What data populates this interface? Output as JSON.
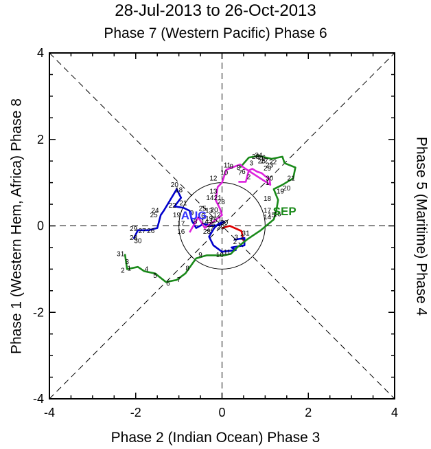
{
  "chart_data": {
    "type": "line",
    "title": "28-Jul-2013 to 26-Oct-2013",
    "subtitle": "Phase 7 (Western Pacific) Phase 6",
    "xlabel": "Phase 2 (Indian Ocean) Phase 3",
    "ylabel_left": "Phase 1 (Western Hem, Africa) Phase 8",
    "ylabel_right": "Phase 5 (Maritime) Phase 4",
    "xlim": [
      -4,
      4
    ],
    "ylim": [
      -4,
      4
    ],
    "xticks": [
      "-4",
      "-2",
      "0",
      "2",
      "4"
    ],
    "yticks": [
      "-4",
      "-2",
      "0",
      "2",
      "4"
    ],
    "unit_circle_radius": 1,
    "grid": false,
    "month_labels": [
      {
        "text": "AUG",
        "x": -0.65,
        "y": 0.15,
        "color": "#3333ff"
      },
      {
        "text": "SEP",
        "x": 1.45,
        "y": 0.25,
        "color": "#1a8a1a"
      }
    ],
    "series": [
      {
        "color": "#dd0000",
        "points": [
          {
            "x": 0.0,
            "y": -0.05,
            "label": "29"
          },
          {
            "x": 0.18,
            "y": 0.0
          },
          {
            "x": 0.45,
            "y": -0.12
          },
          {
            "x": 0.5,
            "y": -0.35
          }
        ]
      },
      {
        "color": "#0000cc",
        "points": [
          {
            "x": 0.28,
            "y": -0.32,
            "label": "31"
          },
          {
            "x": 0.52,
            "y": -0.28
          },
          {
            "x": 0.52,
            "y": -0.45
          },
          {
            "x": 0.22,
            "y": -0.5
          },
          {
            "x": 0.32,
            "y": -0.56
          },
          {
            "x": 0.0,
            "y": -0.6
          },
          {
            "x": -0.2,
            "y": -0.45
          },
          {
            "x": -0.3,
            "y": -0.25
          },
          {
            "x": -0.18,
            "y": -0.05
          },
          {
            "x": -0.08,
            "y": 0.05
          },
          {
            "x": 0.05,
            "y": 0.1
          },
          {
            "x": -0.05,
            "y": 0.02
          },
          {
            "x": -0.25,
            "y": 0.0
          },
          {
            "x": -0.42,
            "y": 0.05
          },
          {
            "x": -0.6,
            "y": -0.05
          },
          {
            "x": -0.7,
            "y": 0.12
          },
          {
            "x": -0.75,
            "y": 0.35
          },
          {
            "x": -0.9,
            "y": 0.42
          },
          {
            "x": -1.1,
            "y": 0.45
          },
          {
            "x": -0.95,
            "y": 0.65
          },
          {
            "x": -1.05,
            "y": 0.85
          },
          {
            "x": -1.35,
            "y": 0.35
          },
          {
            "x": -1.42,
            "y": 0.25
          },
          {
            "x": -1.5,
            "y": -0.05
          },
          {
            "x": -1.7,
            "y": -0.1
          },
          {
            "x": -1.95,
            "y": -0.1
          },
          {
            "x": -2.05,
            "y": -0.3
          }
        ]
      },
      {
        "color": "#1a8a1a",
        "points": [
          {
            "x": -2.25,
            "y": -0.65
          },
          {
            "x": -2.2,
            "y": -1.0
          },
          {
            "x": -1.95,
            "y": -0.95
          },
          {
            "x": -1.8,
            "y": -1.05
          },
          {
            "x": -1.55,
            "y": -1.1
          },
          {
            "x": -1.3,
            "y": -1.3
          },
          {
            "x": -1.05,
            "y": -1.25
          },
          {
            "x": -0.85,
            "y": -1.1
          },
          {
            "x": -0.6,
            "y": -0.75
          },
          {
            "x": -0.35,
            "y": -0.68
          },
          {
            "x": 0.05,
            "y": -0.68
          },
          {
            "x": 0.2,
            "y": -0.65
          },
          {
            "x": 0.35,
            "y": -0.5
          },
          {
            "x": 0.6,
            "y": -0.3
          },
          {
            "x": 0.9,
            "y": -0.1
          },
          {
            "x": 1.2,
            "y": 0.15
          },
          {
            "x": 1.25,
            "y": 0.3
          },
          {
            "x": 1.3,
            "y": 0.6
          },
          {
            "x": 1.2,
            "y": 0.85
          },
          {
            "x": 1.4,
            "y": 0.95
          },
          {
            "x": 1.65,
            "y": 1.1
          },
          {
            "x": 1.7,
            "y": 1.35
          },
          {
            "x": 1.45,
            "y": 1.45
          },
          {
            "x": 1.4,
            "y": 1.6
          },
          {
            "x": 1.15,
            "y": 1.55
          },
          {
            "x": 0.85,
            "y": 1.62
          },
          {
            "x": 0.62,
            "y": 1.58
          },
          {
            "x": 0.42,
            "y": 1.35
          }
        ]
      },
      {
        "color": "#dd22dd",
        "points": [
          {
            "x": 0.38,
            "y": 1.02
          },
          {
            "x": 0.55,
            "y": 1.02
          },
          {
            "x": 0.62,
            "y": 1.28
          },
          {
            "x": 0.7,
            "y": 1.32
          },
          {
            "x": 0.82,
            "y": 1.25
          },
          {
            "x": 0.92,
            "y": 1.22
          },
          {
            "x": 1.0,
            "y": 1.15
          },
          {
            "x": 1.1,
            "y": 1.08
          },
          {
            "x": 1.12,
            "y": 0.95
          },
          {
            "x": 0.5,
            "y": 1.35
          },
          {
            "x": 0.42,
            "y": 1.42
          },
          {
            "x": 0.1,
            "y": 1.3
          },
          {
            "x": 0.0,
            "y": 1.0
          },
          {
            "x": -0.1,
            "y": 0.9
          },
          {
            "x": -0.15,
            "y": 0.6
          },
          {
            "x": -0.05,
            "y": 0.4
          },
          {
            "x": 0.0,
            "y": 0.25
          },
          {
            "x": -0.2,
            "y": 0.1
          },
          {
            "x": -0.4,
            "y": -0.05
          },
          {
            "x": -0.55,
            "y": 0.2
          },
          {
            "x": -0.75,
            "y": -0.15
          }
        ]
      }
    ],
    "day_labels": [
      {
        "text": "29",
        "x": -0.03,
        "y": -0.08
      },
      {
        "text": "30",
        "x": 0.05,
        "y": 0.02
      },
      {
        "text": "31",
        "x": 0.55,
        "y": -0.22
      },
      {
        "text": "1",
        "x": 0.46,
        "y": -0.32
      },
      {
        "text": "2",
        "x": 0.3,
        "y": -0.42
      },
      {
        "text": "20",
        "x": -1.1,
        "y": 0.9
      },
      {
        "text": "18",
        "x": -1.0,
        "y": 0.78
      },
      {
        "text": "22",
        "x": -1.15,
        "y": 0.42
      },
      {
        "text": "21",
        "x": -0.9,
        "y": 0.48
      },
      {
        "text": "24",
        "x": -1.55,
        "y": 0.3
      },
      {
        "text": "25",
        "x": -1.58,
        "y": 0.2
      },
      {
        "text": "19",
        "x": -1.05,
        "y": 0.2
      },
      {
        "text": "17",
        "x": -0.95,
        "y": 0.0
      },
      {
        "text": "16",
        "x": -0.95,
        "y": -0.18
      },
      {
        "text": "29",
        "x": -2.05,
        "y": -0.12
      },
      {
        "text": "27",
        "x": -1.85,
        "y": -0.17
      },
      {
        "text": "26",
        "x": -1.65,
        "y": -0.17
      },
      {
        "text": "28",
        "x": -2.05,
        "y": -0.33
      },
      {
        "text": "30",
        "x": -1.95,
        "y": -0.4
      },
      {
        "text": "31",
        "x": -2.35,
        "y": -0.7
      },
      {
        "text": "3",
        "x": -2.2,
        "y": -0.88
      },
      {
        "text": "2",
        "x": -2.3,
        "y": -1.08
      },
      {
        "text": "1",
        "x": -2.15,
        "y": -1.03
      },
      {
        "text": "4",
        "x": -1.75,
        "y": -1.05
      },
      {
        "text": "5",
        "x": -1.55,
        "y": -1.2
      },
      {
        "text": "6",
        "x": -1.25,
        "y": -1.38
      },
      {
        "text": "7",
        "x": -1.0,
        "y": -1.3
      },
      {
        "text": "8",
        "x": -0.8,
        "y": -1.03
      },
      {
        "text": "9",
        "x": -0.5,
        "y": -0.72
      },
      {
        "text": "10",
        "x": -0.05,
        "y": -0.72
      },
      {
        "text": "11",
        "x": 0.12,
        "y": -0.66
      },
      {
        "text": "12",
        "x": -0.2,
        "y": 1.05
      },
      {
        "text": "13",
        "x": -0.2,
        "y": 0.75
      },
      {
        "text": "14",
        "x": -0.28,
        "y": 0.6
      },
      {
        "text": "21",
        "x": -0.1,
        "y": 0.6
      },
      {
        "text": "23",
        "x": -0.02,
        "y": 0.5
      },
      {
        "text": "11",
        "x": 0.12,
        "y": 1.35
      },
      {
        "text": "10",
        "x": 0.05,
        "y": 1.18
      },
      {
        "text": "9",
        "x": 0.22,
        "y": 1.32
      },
      {
        "text": "8",
        "x": 0.38,
        "y": 1.3
      },
      {
        "text": "6",
        "x": 0.5,
        "y": 1.2
      },
      {
        "text": "7",
        "x": 0.42,
        "y": 1.18
      },
      {
        "text": "2",
        "x": 0.62,
        "y": 1.08
      },
      {
        "text": "3",
        "x": 0.68,
        "y": 1.4
      },
      {
        "text": "28",
        "x": 0.78,
        "y": 1.55
      },
      {
        "text": "24",
        "x": 0.85,
        "y": 1.58
      },
      {
        "text": "26",
        "x": 0.92,
        "y": 1.53
      },
      {
        "text": "27",
        "x": 0.98,
        "y": 1.45
      },
      {
        "text": "22",
        "x": 1.18,
        "y": 1.42
      },
      {
        "text": "23",
        "x": 1.1,
        "y": 1.35
      },
      {
        "text": "29",
        "x": 1.05,
        "y": 1.28
      },
      {
        "text": "25",
        "x": 0.92,
        "y": 1.45
      },
      {
        "text": "30",
        "x": 1.1,
        "y": 1.05
      },
      {
        "text": "1",
        "x": 1.05,
        "y": 0.95
      },
      {
        "text": "21",
        "x": 1.6,
        "y": 1.05
      },
      {
        "text": "19",
        "x": 1.35,
        "y": 0.75
      },
      {
        "text": "20",
        "x": 1.5,
        "y": 0.82
      },
      {
        "text": "18",
        "x": 1.05,
        "y": 0.58
      },
      {
        "text": "17",
        "x": 1.05,
        "y": 0.3
      },
      {
        "text": "14",
        "x": 1.05,
        "y": 0.15
      },
      {
        "text": "15",
        "x": 1.15,
        "y": 0.2
      },
      {
        "text": "16",
        "x": 1.28,
        "y": 0.22
      },
      {
        "text": "3",
        "x": 0.33,
        "y": -0.32
      },
      {
        "text": "28",
        "x": -0.35,
        "y": -0.18
      },
      {
        "text": "14",
        "x": -0.4,
        "y": 0.05
      },
      {
        "text": "8",
        "x": -0.62,
        "y": 0.05
      },
      {
        "text": "9",
        "x": -0.7,
        "y": 0.25
      },
      {
        "text": "19",
        "x": -0.3,
        "y": 0.12
      },
      {
        "text": "15",
        "x": -0.2,
        "y": 0.08
      },
      {
        "text": "1",
        "x": -0.05,
        "y": 0.1
      },
      {
        "text": "10",
        "x": -0.48,
        "y": 0.18
      },
      {
        "text": "12",
        "x": -0.12,
        "y": 0.2
      },
      {
        "text": "13",
        "x": -0.3,
        "y": 0.3
      },
      {
        "text": "20",
        "x": -0.18,
        "y": 0.32
      },
      {
        "text": "25",
        "x": -0.45,
        "y": 0.35
      },
      {
        "text": "26",
        "x": -0.25,
        "y": -0.02
      },
      {
        "text": "27",
        "x": -0.28,
        "y": -0.12
      }
    ]
  }
}
